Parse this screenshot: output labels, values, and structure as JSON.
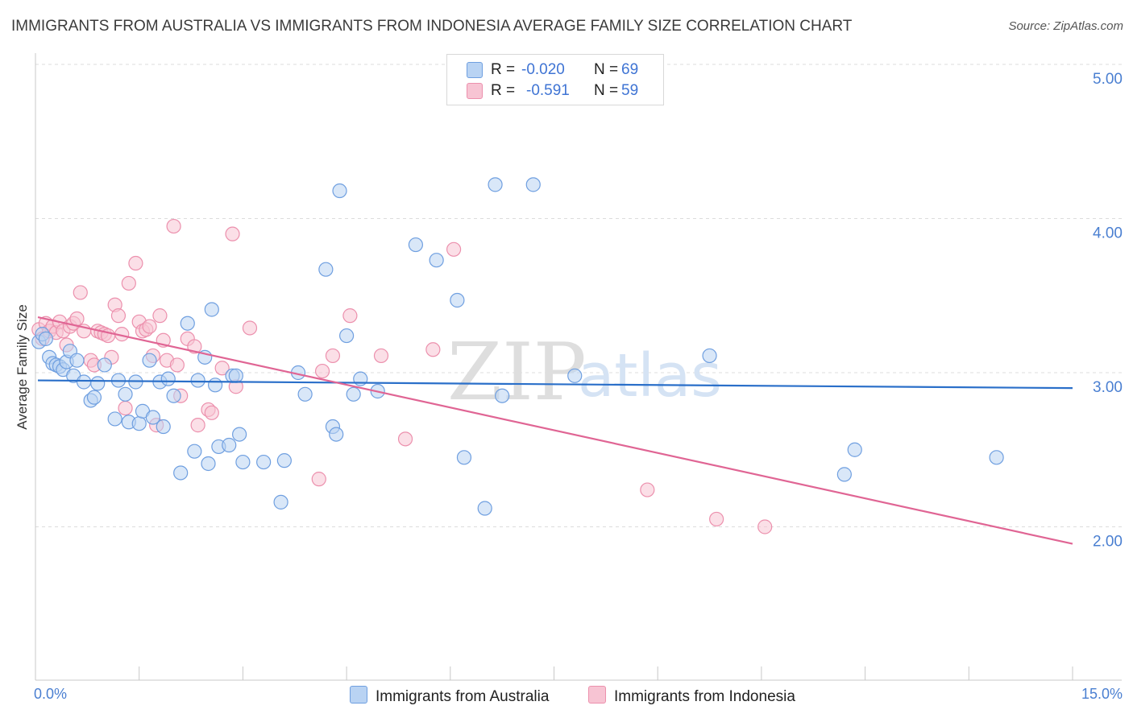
{
  "title": "IMMIGRANTS FROM AUSTRALIA VS IMMIGRANTS FROM INDONESIA AVERAGE FAMILY SIZE CORRELATION CHART",
  "source": "Source: ZipAtlas.com",
  "watermark": {
    "zip": "ZIP",
    "atlas": "atlas"
  },
  "colors": {
    "australia_fill": "#b9d3f3",
    "australia_stroke": "#6f9fe0",
    "australia_line": "#2a6fc9",
    "indonesia_fill": "#f7c4d3",
    "indonesia_stroke": "#ec90ad",
    "indonesia_line": "#e06594",
    "axis_text": "#4a7fd1",
    "grid": "#dcdcdc"
  },
  "legend": {
    "australia": {
      "r_label": "R =",
      "r_value": "-0.020",
      "n_label": "N =",
      "n_value": "69"
    },
    "indonesia": {
      "r_label": "R =",
      "r_value": "-0.591",
      "n_label": "N =",
      "n_value": "59"
    }
  },
  "chart_data": {
    "type": "scatter",
    "title": "IMMIGRANTS FROM AUSTRALIA VS IMMIGRANTS FROM INDONESIA AVERAGE FAMILY SIZE CORRELATION CHART",
    "xlabel": "",
    "ylabel": "Average Family Size",
    "xlim": [
      0,
      15
    ],
    "ylim": [
      1.0,
      5.1
    ],
    "x_tick_labels": [
      "0.0%",
      "15.0%"
    ],
    "y_ticks": [
      2.0,
      3.0,
      4.0,
      5.0
    ],
    "y_tick_labels": [
      "2.00",
      "3.00",
      "4.00",
      "5.00"
    ],
    "grid": true,
    "legend_position": "top-center",
    "series": [
      {
        "name": "Immigrants from Australia",
        "trend": {
          "x": [
            0,
            15
          ],
          "y": [
            2.95,
            2.9
          ]
        },
        "points": [
          [
            0.05,
            3.2
          ],
          [
            0.1,
            3.25
          ],
          [
            0.15,
            3.22
          ],
          [
            0.2,
            3.1
          ],
          [
            0.25,
            3.06
          ],
          [
            0.3,
            3.05
          ],
          [
            0.35,
            3.04
          ],
          [
            0.4,
            3.02
          ],
          [
            0.45,
            3.07
          ],
          [
            0.5,
            3.14
          ],
          [
            0.55,
            2.98
          ],
          [
            0.6,
            3.08
          ],
          [
            0.7,
            2.94
          ],
          [
            0.8,
            2.82
          ],
          [
            0.85,
            2.84
          ],
          [
            0.9,
            2.93
          ],
          [
            1.0,
            3.05
          ],
          [
            1.15,
            2.7
          ],
          [
            1.2,
            2.95
          ],
          [
            1.3,
            2.86
          ],
          [
            1.35,
            2.68
          ],
          [
            1.45,
            2.94
          ],
          [
            1.5,
            2.67
          ],
          [
            1.55,
            2.75
          ],
          [
            1.65,
            3.08
          ],
          [
            1.7,
            2.71
          ],
          [
            1.8,
            2.94
          ],
          [
            1.85,
            2.65
          ],
          [
            1.92,
            2.96
          ],
          [
            2.0,
            2.85
          ],
          [
            2.1,
            2.35
          ],
          [
            2.2,
            3.32
          ],
          [
            2.3,
            2.49
          ],
          [
            2.35,
            2.95
          ],
          [
            2.45,
            3.1
          ],
          [
            2.5,
            2.41
          ],
          [
            2.55,
            3.41
          ],
          [
            2.6,
            2.92
          ],
          [
            2.65,
            2.52
          ],
          [
            2.8,
            2.53
          ],
          [
            2.85,
            2.98
          ],
          [
            2.9,
            2.98
          ],
          [
            2.95,
            2.6
          ],
          [
            3.0,
            2.42
          ],
          [
            3.3,
            2.42
          ],
          [
            3.55,
            2.16
          ],
          [
            3.6,
            2.43
          ],
          [
            3.8,
            3.0
          ],
          [
            3.9,
            2.86
          ],
          [
            4.2,
            3.67
          ],
          [
            4.3,
            2.65
          ],
          [
            4.35,
            2.6
          ],
          [
            4.4,
            4.18
          ],
          [
            4.5,
            3.24
          ],
          [
            4.6,
            2.86
          ],
          [
            4.7,
            2.96
          ],
          [
            4.95,
            2.88
          ],
          [
            5.5,
            3.83
          ],
          [
            5.8,
            3.73
          ],
          [
            6.1,
            3.47
          ],
          [
            6.2,
            2.45
          ],
          [
            6.5,
            2.12
          ],
          [
            6.65,
            4.22
          ],
          [
            6.75,
            2.85
          ],
          [
            7.2,
            4.22
          ],
          [
            7.8,
            2.98
          ],
          [
            9.75,
            3.11
          ],
          [
            11.7,
            2.34
          ],
          [
            11.85,
            2.5
          ],
          [
            13.9,
            2.45
          ]
        ]
      },
      {
        "name": "Immigrants from Indonesia",
        "trend": {
          "x": [
            0,
            15
          ],
          "y": [
            3.36,
            1.89
          ]
        },
        "points": [
          [
            0.05,
            3.28
          ],
          [
            0.1,
            3.22
          ],
          [
            0.15,
            3.32
          ],
          [
            0.2,
            3.27
          ],
          [
            0.25,
            3.3
          ],
          [
            0.3,
            3.26
          ],
          [
            0.35,
            3.33
          ],
          [
            0.4,
            3.27
          ],
          [
            0.45,
            3.18
          ],
          [
            0.5,
            3.3
          ],
          [
            0.55,
            3.32
          ],
          [
            0.6,
            3.35
          ],
          [
            0.65,
            3.52
          ],
          [
            0.7,
            3.27
          ],
          [
            0.8,
            3.08
          ],
          [
            0.85,
            3.05
          ],
          [
            0.9,
            3.27
          ],
          [
            0.95,
            3.26
          ],
          [
            1.0,
            3.25
          ],
          [
            1.05,
            3.24
          ],
          [
            1.1,
            3.1
          ],
          [
            1.15,
            3.44
          ],
          [
            1.2,
            3.37
          ],
          [
            1.25,
            3.25
          ],
          [
            1.3,
            2.77
          ],
          [
            1.35,
            3.58
          ],
          [
            1.45,
            3.71
          ],
          [
            1.5,
            3.33
          ],
          [
            1.55,
            3.27
          ],
          [
            1.6,
            3.28
          ],
          [
            1.65,
            3.3
          ],
          [
            1.7,
            3.11
          ],
          [
            1.75,
            2.66
          ],
          [
            1.8,
            3.37
          ],
          [
            1.85,
            3.21
          ],
          [
            1.9,
            3.08
          ],
          [
            2.0,
            3.95
          ],
          [
            2.05,
            3.05
          ],
          [
            2.1,
            2.85
          ],
          [
            2.2,
            3.22
          ],
          [
            2.3,
            3.17
          ],
          [
            2.35,
            2.66
          ],
          [
            2.5,
            2.76
          ],
          [
            2.55,
            2.74
          ],
          [
            2.7,
            3.03
          ],
          [
            2.85,
            3.9
          ],
          [
            2.9,
            2.91
          ],
          [
            3.1,
            3.29
          ],
          [
            4.1,
            2.31
          ],
          [
            4.15,
            3.01
          ],
          [
            4.3,
            3.11
          ],
          [
            4.55,
            3.37
          ],
          [
            5.0,
            3.11
          ],
          [
            5.35,
            2.57
          ],
          [
            5.75,
            3.15
          ],
          [
            6.05,
            3.8
          ],
          [
            8.85,
            2.24
          ],
          [
            9.85,
            2.05
          ],
          [
            10.55,
            2.0
          ]
        ]
      }
    ]
  }
}
